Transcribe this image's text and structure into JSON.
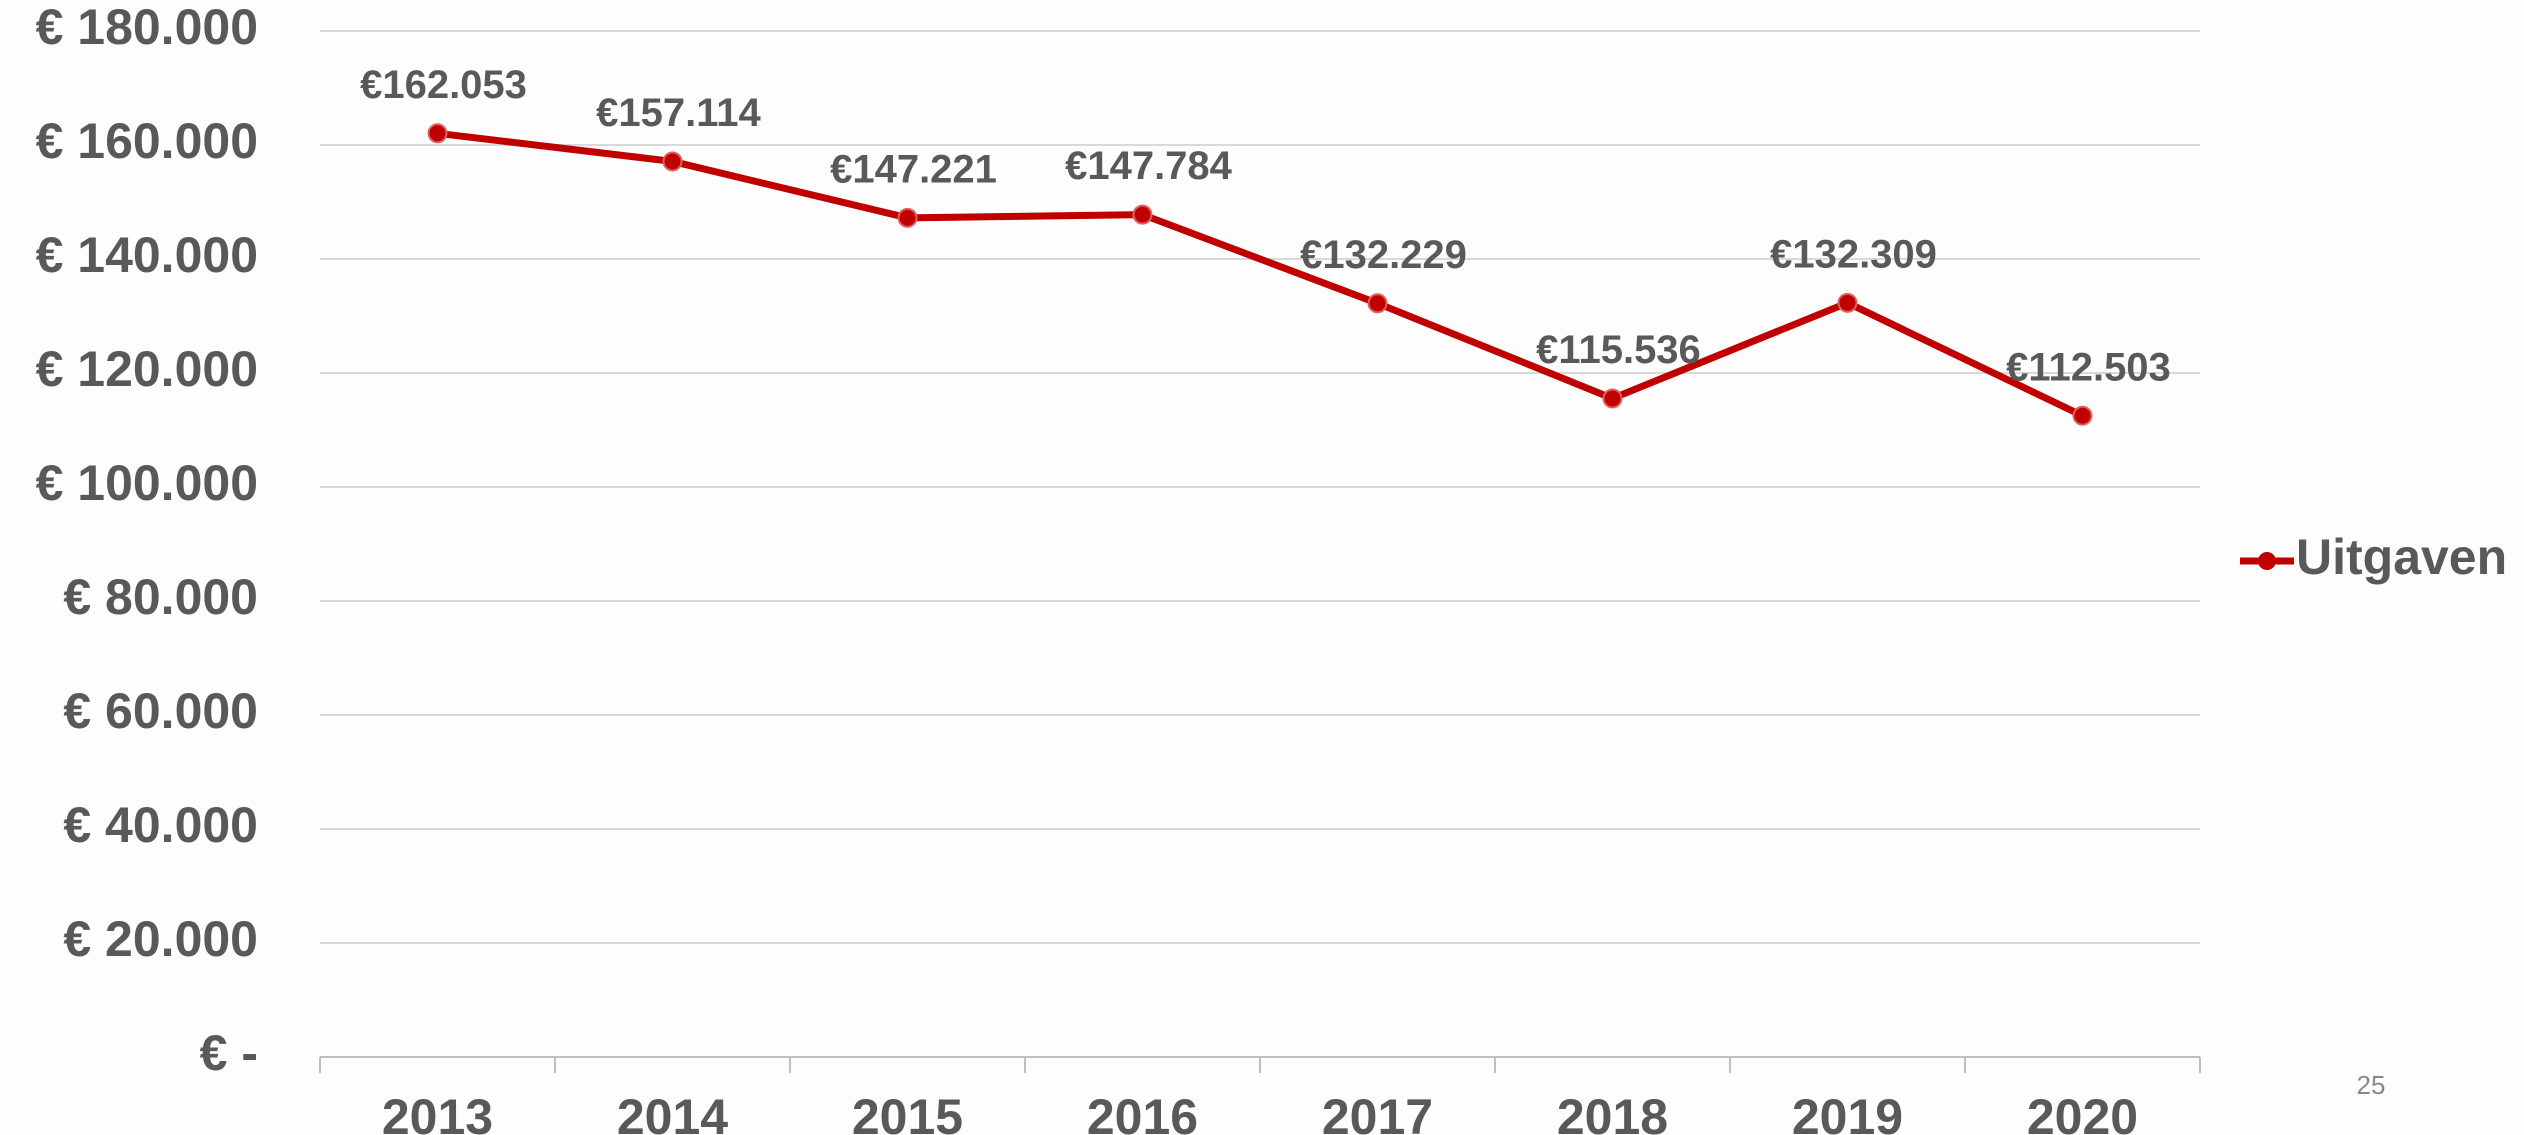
{
  "chart_data": {
    "type": "line",
    "categories": [
      "2013",
      "2014",
      "2015",
      "2016",
      "2017",
      "2018",
      "2019",
      "2020"
    ],
    "series": [
      {
        "name": "Uitgaven",
        "color": "#c00000",
        "values": [
          162053,
          157114,
          147221,
          147784,
          132229,
          115536,
          132309,
          112503
        ],
        "value_labels": [
          "€162.053",
          "€157.114",
          "€147.221",
          "€147.784",
          "€132.229",
          "€115.536",
          "€132.309",
          "€112.503"
        ]
      }
    ],
    "ylim": [
      0,
      180000
    ],
    "yticks": [
      {
        "value": 0,
        "label": "€ -"
      },
      {
        "value": 20000,
        "label": "€ 20.000"
      },
      {
        "value": 40000,
        "label": "€ 40.000"
      },
      {
        "value": 60000,
        "label": "€ 60.000"
      },
      {
        "value": 80000,
        "label": "€ 80.000"
      },
      {
        "value": 100000,
        "label": "€ 100.000"
      },
      {
        "value": 120000,
        "label": "€ 120.000"
      },
      {
        "value": 140000,
        "label": "€ 140.000"
      },
      {
        "value": 160000,
        "label": "€ 160.000"
      },
      {
        "value": 180000,
        "label": "€ 180.000"
      }
    ],
    "grid": true,
    "legend": "right"
  },
  "page_number": "25"
}
